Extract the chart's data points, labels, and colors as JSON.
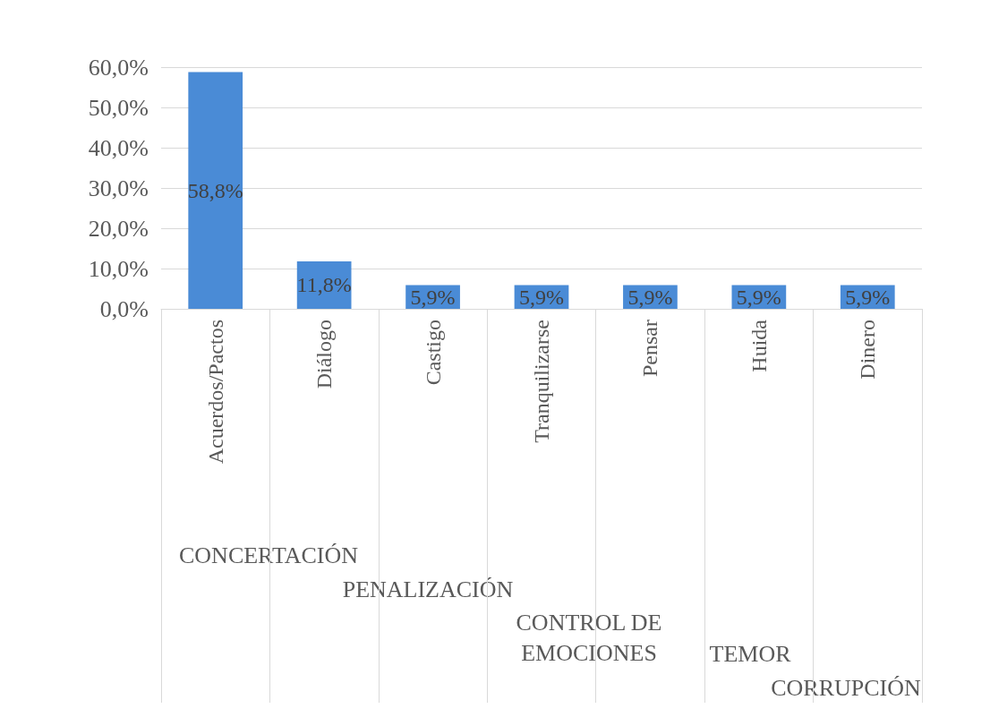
{
  "chart_data": {
    "type": "bar",
    "categories": [
      "Acuerdos/Pactos",
      "Diálogo",
      "Castigo",
      "Tranquilizarse",
      "Pensar",
      "Huida",
      "Dinero"
    ],
    "values": [
      58.8,
      11.8,
      5.9,
      5.9,
      5.9,
      5.9,
      5.9
    ],
    "value_labels": [
      "58,8%",
      "11,8%",
      "5,9%",
      "5,9%",
      "5,9%",
      "5,9%",
      "5,9%"
    ],
    "color": "#4a8bd6",
    "ylim": [
      0,
      60
    ],
    "yticks": [
      {
        "value": 0,
        "label": "0,0%"
      },
      {
        "value": 10,
        "label": "10,0%"
      },
      {
        "value": 20,
        "label": "20,0%"
      },
      {
        "value": 30,
        "label": "30,0%"
      },
      {
        "value": 40,
        "label": "40,0%"
      },
      {
        "value": 50,
        "label": "50,0%"
      },
      {
        "value": 60,
        "label": "60,0%"
      }
    ],
    "grid": "y",
    "annotations": [
      "CONCERTACIÓN",
      "PENALIZACIÓN",
      "CONTROL DE\nEMOCIONES",
      "TEMOR",
      "CORRUPCIÓN"
    ]
  }
}
